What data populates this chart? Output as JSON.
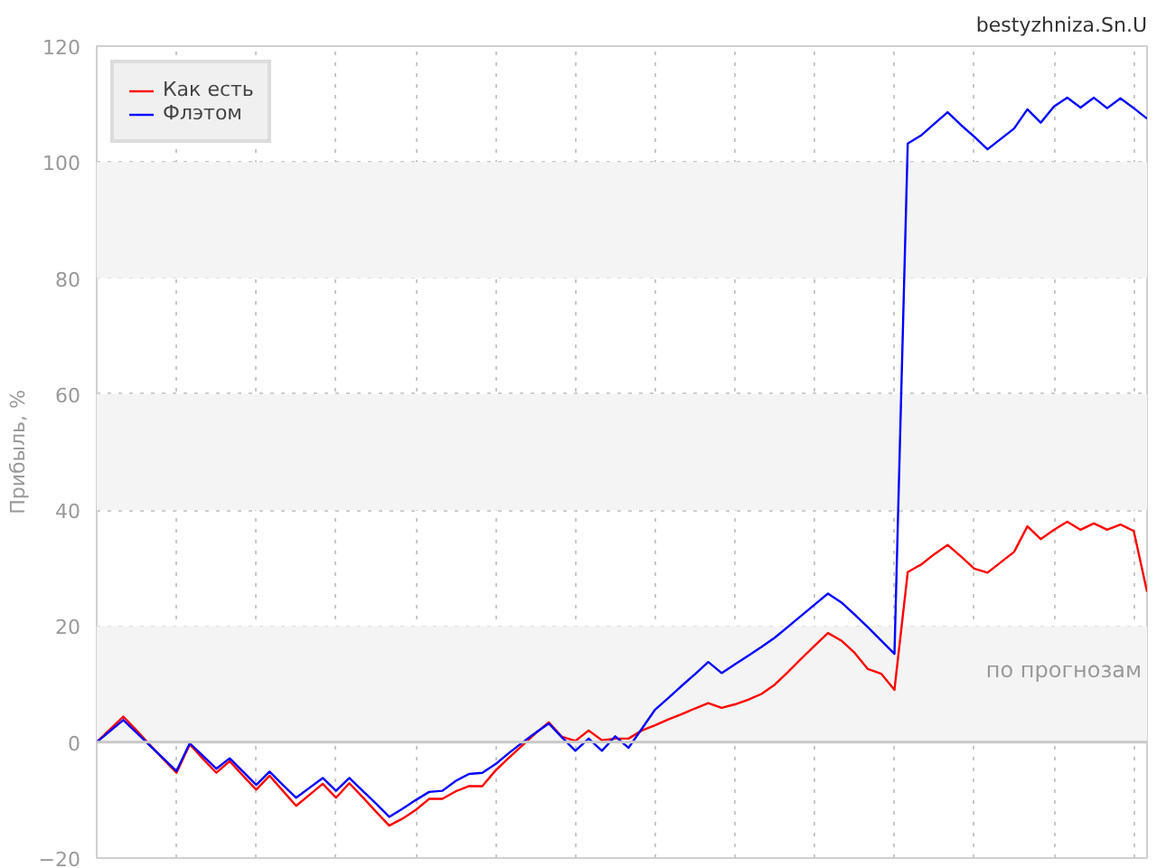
{
  "chart_data": {
    "type": "line",
    "title": "bestyzhniza.Sn.U",
    "ylabel": "Прибыль, %",
    "annotations": [
      "по прогнозам"
    ],
    "categories": [
      null,
      null,
      null,
      null,
      null,
      null,
      null,
      null,
      null,
      null,
      null,
      null,
      null,
      null,
      null,
      null,
      null,
      null,
      null,
      null,
      null,
      null,
      null,
      null,
      null,
      null,
      null,
      null,
      null,
      null,
      null,
      null,
      null,
      null,
      null,
      null,
      null,
      null,
      null,
      null,
      null,
      null,
      null,
      null,
      null,
      null,
      null,
      null,
      null,
      null,
      null,
      null,
      null,
      null,
      null,
      null,
      null,
      null,
      null,
      null,
      null,
      null,
      null,
      null,
      null,
      null,
      null,
      null,
      null,
      null,
      null,
      null,
      null,
      null,
      null,
      null,
      null,
      null,
      null,
      null
    ],
    "series": [
      {
        "name": "Как есть",
        "color": "#ff0000",
        "values": [
          0,
          2.2,
          4.4,
          2.0,
          -0.5,
          -2.9,
          -5.3,
          -0.4,
          -2.9,
          -5.3,
          -3.3,
          -5.8,
          -8.2,
          -5.8,
          -8.4,
          -11,
          -9.1,
          -7.2,
          -9.6,
          -7.1,
          -9.5,
          -12.0,
          -14.4,
          -13.2,
          -11.7,
          -9.8,
          -9.8,
          -8.5,
          -7.6,
          -7.6,
          -4.9,
          -2.7,
          -0.6,
          1.5,
          3.4,
          0.9,
          0.2,
          2,
          0.3,
          0.6,
          0.6,
          2,
          2.9,
          3.9,
          4.8,
          5.8,
          6.7,
          5.9,
          6.5,
          7.3,
          8.3,
          9.9,
          12.1,
          14.4,
          16.6,
          18.8,
          17.5,
          15.4,
          12.6,
          11.8,
          9,
          29.3,
          30.6,
          32.4,
          34,
          32,
          29.9,
          29.2,
          31,
          32.8,
          37.2,
          35,
          36.6,
          38,
          36.6,
          37.7,
          36.6,
          37.5,
          36.4,
          25.9
        ]
      },
      {
        "name": "Флэтом",
        "color": "#0000ff",
        "values": [
          0,
          1.9,
          3.8,
          1.6,
          -0.6,
          -2.8,
          -5,
          -0.2,
          -2.4,
          -4.6,
          -2.8,
          -5.1,
          -7.4,
          -5.1,
          -7.4,
          -9.6,
          -7.9,
          -6.2,
          -8.4,
          -6.2,
          -8.4,
          -10.6,
          -12.9,
          -11.5,
          -10,
          -8.6,
          -8.4,
          -6.7,
          -5.5,
          -5.3,
          -3.8,
          -1.9,
          -0.1,
          1.6,
          3.2,
          0.8,
          -1.5,
          0.6,
          -1.5,
          1,
          -1,
          2.3,
          5.6,
          7.6,
          9.7,
          11.7,
          13.8,
          11.9,
          13.4,
          14.9,
          16.4,
          18,
          19.9,
          21.8,
          23.7,
          25.6,
          24.1,
          22,
          19.8,
          17.5,
          15.2,
          103.2,
          104.6,
          106.6,
          108.6,
          106.4,
          104.4,
          102.2,
          104,
          105.8,
          109.1,
          106.8,
          109.6,
          111.1,
          109.4,
          111.1,
          109.3,
          111,
          109.3,
          107.5
        ]
      }
    ],
    "ylim": [
      -20,
      120
    ],
    "yticks": [
      -20,
      0,
      20,
      40,
      60,
      80,
      100,
      120
    ],
    "bands": [
      {
        "axis": "y",
        "from": 0,
        "to": 20,
        "color": "#f4f4f4"
      },
      {
        "axis": "y",
        "from": 40,
        "to": 60,
        "color": "#f4f4f4"
      },
      {
        "axis": "y",
        "from": 80,
        "to": 100,
        "color": "#f4f4f4"
      }
    ],
    "ref_lines": [
      {
        "axis": "y",
        "value": 0,
        "color": "#c8c8c8"
      }
    ],
    "grid": true,
    "legend": "top left",
    "marker": "none",
    "line_style": "solid",
    "tick_labels": "y"
  }
}
